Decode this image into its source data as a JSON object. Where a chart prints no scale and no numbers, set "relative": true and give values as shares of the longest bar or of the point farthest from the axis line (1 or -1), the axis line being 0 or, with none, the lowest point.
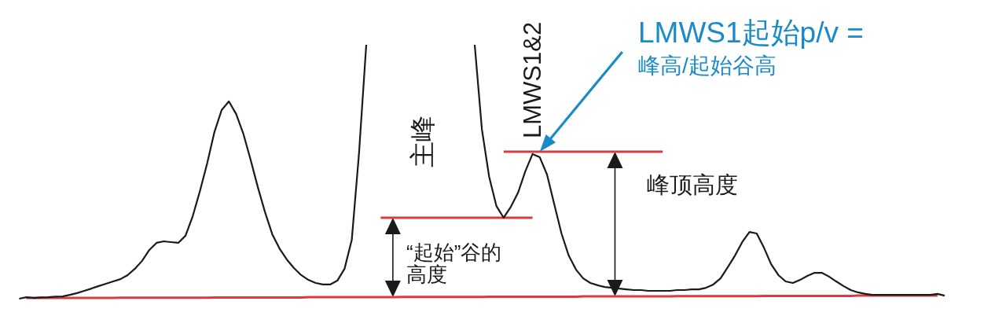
{
  "chart_data": {
    "type": "line",
    "relative": true,
    "categories": [
      null,
      null,
      null,
      null,
      null,
      null,
      null,
      null,
      null,
      null,
      null,
      null,
      null,
      null,
      null,
      null,
      null,
      null,
      null,
      null,
      null,
      null,
      null,
      null,
      null,
      null,
      null,
      null,
      null,
      null,
      null,
      null,
      null,
      null,
      null,
      null,
      null,
      null,
      null,
      null,
      null,
      null,
      null,
      null,
      null,
      null,
      null,
      null,
      null,
      null,
      null,
      null,
      null,
      null,
      null,
      null,
      null,
      null,
      null,
      null,
      null,
      null,
      null,
      null,
      null,
      null,
      null,
      null,
      null,
      null,
      null,
      null,
      null,
      null,
      null,
      null,
      null,
      null,
      null,
      null,
      null,
      null,
      null,
      null,
      null,
      null,
      null,
      null,
      null,
      null,
      null,
      null,
      null,
      null,
      null,
      null,
      null,
      null,
      null,
      null,
      null,
      null,
      null,
      null,
      null,
      null,
      null,
      null,
      null,
      null,
      null,
      null,
      null,
      null,
      null,
      null,
      null,
      null,
      null,
      null,
      null,
      null,
      null,
      null,
      null,
      null,
      null,
      null,
      null
    ],
    "series": [
      {
        "color": "#1a1a1a",
        "values": [
          0.0,
          0.006,
          0.003,
          0.005,
          0.006,
          0.008,
          0.009,
          0.015,
          0.022,
          0.031,
          0.04,
          0.05,
          0.059,
          0.068,
          0.077,
          0.093,
          0.118,
          0.149,
          0.192,
          0.22,
          0.226,
          0.223,
          0.22,
          0.248,
          0.325,
          0.424,
          0.533,
          0.656,
          0.743,
          0.777,
          0.728,
          0.65,
          0.548,
          0.44,
          0.341,
          0.254,
          0.198,
          0.155,
          0.121,
          0.093,
          0.074,
          0.062,
          0.056,
          0.056,
          0.071,
          0.118,
          0.232,
          0.573,
          1.0,
          null,
          null,
          null,
          null,
          null,
          null,
          null,
          null,
          null,
          null,
          null,
          null,
          null,
          null,
          1.0,
          0.666,
          0.48,
          0.365,
          0.319,
          0.362,
          0.418,
          0.502,
          0.57,
          0.557,
          0.489,
          0.372,
          0.257,
          0.17,
          0.115,
          0.08,
          0.062,
          0.053,
          0.046,
          0.043,
          0.04,
          0.037,
          0.034,
          0.034,
          0.031,
          0.031,
          0.031,
          0.031,
          0.034,
          0.034,
          0.037,
          0.037,
          0.043,
          0.056,
          0.08,
          0.124,
          0.17,
          0.223,
          0.263,
          0.257,
          0.201,
          0.136,
          0.093,
          0.068,
          0.062,
          0.074,
          0.09,
          0.102,
          0.102,
          0.087,
          0.068,
          0.05,
          0.034,
          0.025,
          0.019,
          0.015,
          0.015,
          0.015,
          0.015,
          0.015,
          0.015,
          0.015,
          0.015,
          0.015,
          0.019,
          0.012
        ]
      },
      {
        "color": "#dc3a40",
        "values": [
          null,
          0.003,
          0.003,
          0.003,
          0.003,
          0.003,
          0.003,
          0.003,
          0.003,
          0.003,
          0.003,
          0.003,
          0.003,
          0.003,
          0.004,
          0.004,
          0.004,
          0.004,
          0.004,
          0.004,
          0.004,
          0.004,
          0.004,
          0.004,
          0.004,
          0.004,
          0.004,
          0.005,
          0.005,
          0.005,
          0.005,
          0.005,
          0.005,
          0.005,
          0.005,
          0.005,
          0.005,
          0.005,
          0.005,
          0.005,
          0.006,
          0.006,
          0.006,
          0.006,
          0.006,
          0.006,
          0.006,
          0.006,
          0.006,
          0.006,
          0.006,
          0.006,
          0.006,
          0.007,
          0.007,
          0.007,
          0.007,
          0.007,
          0.007,
          0.007,
          0.007,
          0.007,
          0.007,
          0.007,
          0.007,
          0.008,
          0.008,
          0.008,
          0.008,
          0.008,
          0.008,
          0.008,
          0.008,
          0.008,
          0.008,
          0.008,
          0.008,
          0.008,
          0.009,
          0.009,
          0.009,
          0.009,
          0.009,
          0.009,
          0.009,
          0.009,
          0.009,
          0.009,
          0.009,
          0.009,
          0.009,
          0.01,
          0.01,
          0.01,
          0.01,
          0.01,
          0.01,
          0.01,
          0.01,
          0.01,
          0.01,
          0.01,
          0.01,
          0.011,
          0.011,
          0.011,
          0.011,
          0.011,
          0.011,
          0.011,
          0.011,
          0.011,
          0.011,
          0.011,
          0.011,
          0.011,
          0.012,
          0.012,
          0.012,
          0.012,
          0.012,
          0.012,
          0.012,
          0.012,
          0.012,
          0.012,
          0.012,
          0.012,
          null
        ]
      },
      {
        "color": "#dc3a40",
        "values": [
          null,
          null,
          null,
          null,
          null,
          null,
          null,
          null,
          null,
          null,
          null,
          null,
          null,
          null,
          null,
          null,
          null,
          null,
          null,
          null,
          null,
          null,
          null,
          null,
          null,
          null,
          null,
          null,
          null,
          null,
          null,
          null,
          null,
          null,
          null,
          null,
          null,
          null,
          null,
          null,
          null,
          null,
          null,
          null,
          null,
          null,
          null,
          null,
          null,
          null,
          0.319,
          0.319,
          0.319,
          0.319,
          0.319,
          0.319,
          0.319,
          0.319,
          0.319,
          0.319,
          0.319,
          0.319,
          0.319,
          0.319,
          0.319,
          0.319,
          0.319,
          0.319,
          0.319,
          0.319,
          0.319,
          0.319,
          null,
          null,
          null,
          null,
          null,
          null,
          null,
          null,
          null,
          null,
          null,
          null,
          null,
          null,
          null,
          null,
          null,
          null,
          null,
          null,
          null,
          null,
          null,
          null,
          null,
          null,
          null,
          null,
          null,
          null,
          null,
          null,
          null,
          null,
          null,
          null,
          null,
          null,
          null,
          null,
          null,
          null,
          null,
          null,
          null,
          null,
          null,
          null,
          null,
          null,
          null,
          null,
          null,
          null,
          null,
          null,
          null
        ]
      },
      {
        "color": "#dc3a40",
        "values": [
          null,
          null,
          null,
          null,
          null,
          null,
          null,
          null,
          null,
          null,
          null,
          null,
          null,
          null,
          null,
          null,
          null,
          null,
          null,
          null,
          null,
          null,
          null,
          null,
          null,
          null,
          null,
          null,
          null,
          null,
          null,
          null,
          null,
          null,
          null,
          null,
          null,
          null,
          null,
          null,
          null,
          null,
          null,
          null,
          null,
          null,
          null,
          null,
          null,
          null,
          null,
          null,
          null,
          null,
          null,
          null,
          null,
          null,
          null,
          null,
          null,
          null,
          null,
          null,
          null,
          null,
          null,
          0.579,
          0.579,
          0.579,
          0.579,
          0.579,
          0.579,
          0.579,
          0.579,
          0.579,
          0.579,
          0.579,
          0.579,
          0.579,
          0.579,
          0.579,
          0.579,
          0.579,
          0.579,
          0.579,
          0.579,
          0.579,
          0.579,
          0.579,
          null,
          null,
          null,
          null,
          null,
          null,
          null,
          null,
          null,
          null,
          null,
          null,
          null,
          null,
          null,
          null,
          null,
          null,
          null,
          null,
          null,
          null,
          null,
          null,
          null,
          null,
          null,
          null,
          null,
          null,
          null,
          null,
          null,
          null,
          null,
          null,
          null,
          null,
          null
        ]
      }
    ],
    "annotations": [
      "LMWS1起始p/v =",
      "峰高/起始谷高",
      "LMWS1&2",
      "主峰",
      "峰顶高度",
      "“起始”谷的高度"
    ]
  }
}
